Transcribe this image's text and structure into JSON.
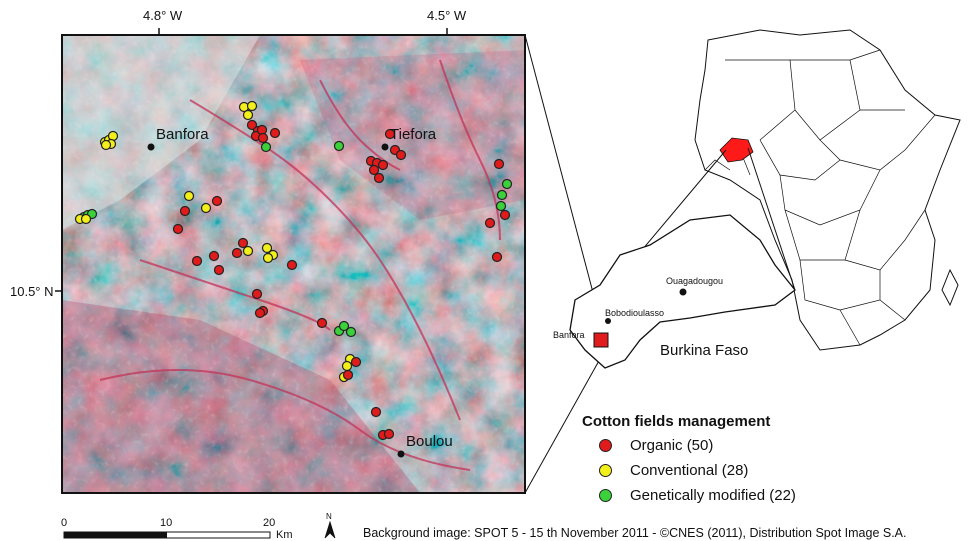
{
  "map": {
    "coords": {
      "lon_left": "4.8° W",
      "lon_right": "4.5° W",
      "lat": "10.5° N"
    },
    "cities": {
      "banfora": "Banfora",
      "tiefora": "Tiefora",
      "boulou": "Boulou"
    },
    "inset": {
      "ouagadougou": "Ouagadougou",
      "bobodioulasso": "Bobodioulasso",
      "banfora": "Banfora",
      "country": "Burkina Faso"
    },
    "legend": {
      "title": "Cotton fields management",
      "items": [
        {
          "label": "Organic (50)",
          "color": "#e01b1b"
        },
        {
          "label": "Conventional (28)",
          "color": "#f3ef1a"
        },
        {
          "label": "Genetically modified (22)",
          "color": "#3bd13b"
        }
      ]
    },
    "scale": {
      "ticks": [
        "0",
        "10",
        "20"
      ],
      "unit": "Km",
      "north": "N"
    },
    "credit": "Background image: SPOT 5 - 15 th November 2011 - ©CNES (2011), Distribution Spot Image S.A.",
    "colors": {
      "imagery_base": "#a9b9b6",
      "imagery_red": "#c8415c",
      "highlight": "#ff0000"
    }
  }
}
